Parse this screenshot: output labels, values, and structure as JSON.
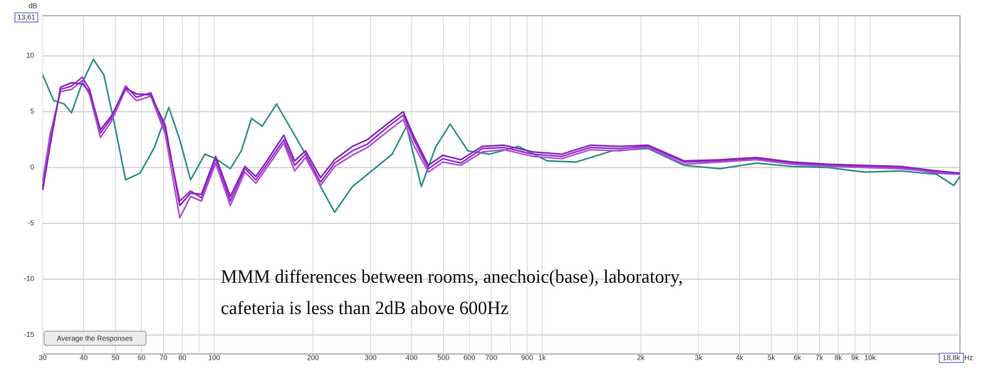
{
  "chart_data": {
    "type": "line",
    "y_unit": "dB",
    "x_unit": "Hz",
    "y_max_label": "13,61",
    "x_max_label": "18,8k",
    "button": "Average the Responses",
    "annotation": [
      "MMM differences between rooms, anechoic(base), laboratory,",
      "cafeteria is less than 2dB above 600Hz"
    ],
    "xscale": "log",
    "grid": true,
    "xlim": [
      30,
      18800
    ],
    "ylim": [
      -16.7,
      13.61
    ],
    "yticks": [
      10,
      5,
      0,
      -5,
      -10,
      -15
    ],
    "xticks": [
      30,
      40,
      50,
      60,
      70,
      80,
      100,
      200,
      300,
      400,
      500,
      600,
      700,
      900,
      {
        "value": 1000,
        "label": "1k"
      },
      {
        "value": 2000,
        "label": "2k"
      },
      {
        "value": 3000,
        "label": "3k"
      },
      {
        "value": 4000,
        "label": "4k"
      },
      {
        "value": 5000,
        "label": "5k"
      },
      {
        "value": 6000,
        "label": "6k"
      },
      {
        "value": 7000,
        "label": "7k"
      },
      {
        "value": 8000,
        "label": "8k"
      },
      {
        "value": 9000,
        "label": "9k"
      },
      {
        "value": 10000,
        "label": "10k"
      }
    ],
    "x_minor_ticks": [
      90,
      800
    ],
    "series": [
      {
        "color": "#2e8f86",
        "x": [
          30,
          32.4,
          34.9,
          36.7,
          39.6,
          42.8,
          46.1,
          49.8,
          53.7,
          59.4,
          65.7,
          72.7,
          78.5,
          84.7,
          93.7,
          101,
          112,
          121,
          130,
          140,
          155,
          172,
          190,
          211,
          233,
          264,
          308,
          349,
          386,
          428,
          473,
          524,
          594,
          691,
          847,
          1036,
          1269,
          1635,
          2105,
          2711,
          3491,
          4498,
          5792,
          7458,
          9605,
          12377,
          15937,
          18000,
          18800
        ],
        "values": [
          8.3,
          6.0,
          5.7,
          4.9,
          7.6,
          9.7,
          8.3,
          3.7,
          -1.1,
          -0.5,
          1.8,
          5.4,
          2.5,
          -1.1,
          1.2,
          0.8,
          -0.1,
          1.5,
          4.4,
          3.7,
          5.7,
          3.4,
          1.2,
          -1.7,
          -4.0,
          -1.7,
          -0.1,
          1.2,
          3.7,
          -1.7,
          1.8,
          3.9,
          1.5,
          1.2,
          1.9,
          0.6,
          0.5,
          1.5,
          1.7,
          0.2,
          -0.1,
          0.4,
          0.1,
          0.0,
          -0.4,
          -0.3,
          -0.6,
          -1.6,
          -0.8
        ]
      },
      {
        "color": "#9a2fc9",
        "x": [
          30,
          31.6,
          34.0,
          36.7,
          39.6,
          41.7,
          45.0,
          48.5,
          53.7,
          57.9,
          64.1,
          70.9,
          78.5,
          84.7,
          91.4,
          101,
          112,
          124,
          134,
          144,
          163,
          176,
          190,
          211,
          233,
          264,
          293,
          340,
          377,
          406,
          450,
          498,
          565,
          657,
          765,
          937,
          1147,
          1404,
          1720,
          2105,
          2711,
          3491,
          4498,
          5792,
          7458,
          9605,
          12377,
          15937,
          18800
        ],
        "values": [
          -1.7,
          2.5,
          7.0,
          7.3,
          8.1,
          7.0,
          3.1,
          4.4,
          7.3,
          6.3,
          6.7,
          3.4,
          -3.0,
          -2.1,
          -2.7,
          0.8,
          -3.0,
          -0.1,
          -1.1,
          0.2,
          2.5,
          0.2,
          1.2,
          -1.3,
          0.4,
          1.5,
          2.1,
          3.7,
          4.7,
          2.5,
          -0.1,
          0.8,
          0.4,
          1.7,
          1.8,
          1.2,
          1.0,
          1.8,
          1.7,
          1.9,
          0.5,
          0.6,
          0.8,
          0.4,
          0.2,
          0.1,
          0.0,
          -0.5,
          -0.6
        ]
      },
      {
        "color": "#b04fd6",
        "x": [
          30,
          31.6,
          34.0,
          36.7,
          39.6,
          41.7,
          45.0,
          48.5,
          53.7,
          57.9,
          64.1,
          70.9,
          78.5,
          84.7,
          91.4,
          101,
          112,
          124,
          134,
          144,
          163,
          176,
          190,
          211,
          233,
          264,
          293,
          340,
          377,
          406,
          450,
          498,
          565,
          657,
          765,
          937,
          1147,
          1404,
          1720,
          2105,
          2711,
          3491,
          4498,
          5792,
          7458,
          9605,
          12377,
          15937,
          18800
        ],
        "values": [
          -1.2,
          3.0,
          6.8,
          7.0,
          7.8,
          6.5,
          2.7,
          4.1,
          7.0,
          6.0,
          6.4,
          3.0,
          -4.5,
          -2.6,
          -3.0,
          0.4,
          -3.4,
          -0.4,
          -1.4,
          -0.1,
          2.2,
          -0.3,
          0.9,
          -1.6,
          0.1,
          1.1,
          1.8,
          3.3,
          4.3,
          2.0,
          -0.4,
          0.5,
          0.2,
          1.4,
          1.6,
          1.0,
          0.8,
          1.6,
          1.5,
          1.8,
          0.3,
          0.5,
          0.7,
          0.3,
          0.1,
          0.0,
          -0.1,
          -0.4,
          -0.6
        ]
      },
      {
        "color": "#8526b8",
        "x": [
          30,
          31.6,
          34.0,
          36.7,
          39.6,
          41.7,
          45.0,
          48.5,
          53.7,
          57.9,
          64.1,
          70.9,
          78.5,
          84.7,
          91.4,
          101,
          112,
          124,
          134,
          144,
          163,
          176,
          190,
          211,
          233,
          264,
          293,
          340,
          377,
          406,
          450,
          498,
          565,
          657,
          765,
          937,
          1147,
          1404,
          1720,
          2105,
          2711,
          3491,
          4498,
          5792,
          7458,
          9605,
          12377,
          15937,
          18800
        ],
        "values": [
          -2.0,
          2.0,
          7.2,
          7.6,
          7.5,
          6.8,
          3.4,
          4.6,
          7.1,
          6.6,
          6.5,
          3.8,
          -3.4,
          -2.3,
          -2.4,
          1.0,
          -2.6,
          0.1,
          -0.8,
          0.5,
          2.9,
          0.6,
          1.5,
          -0.9,
          0.7,
          1.9,
          2.5,
          4.0,
          5.0,
          2.8,
          0.2,
          1.1,
          0.7,
          1.9,
          2.0,
          1.4,
          1.2,
          2.0,
          1.9,
          2.0,
          0.6,
          0.7,
          0.9,
          0.5,
          0.3,
          0.2,
          0.1,
          -0.3,
          -0.5
        ]
      }
    ]
  }
}
